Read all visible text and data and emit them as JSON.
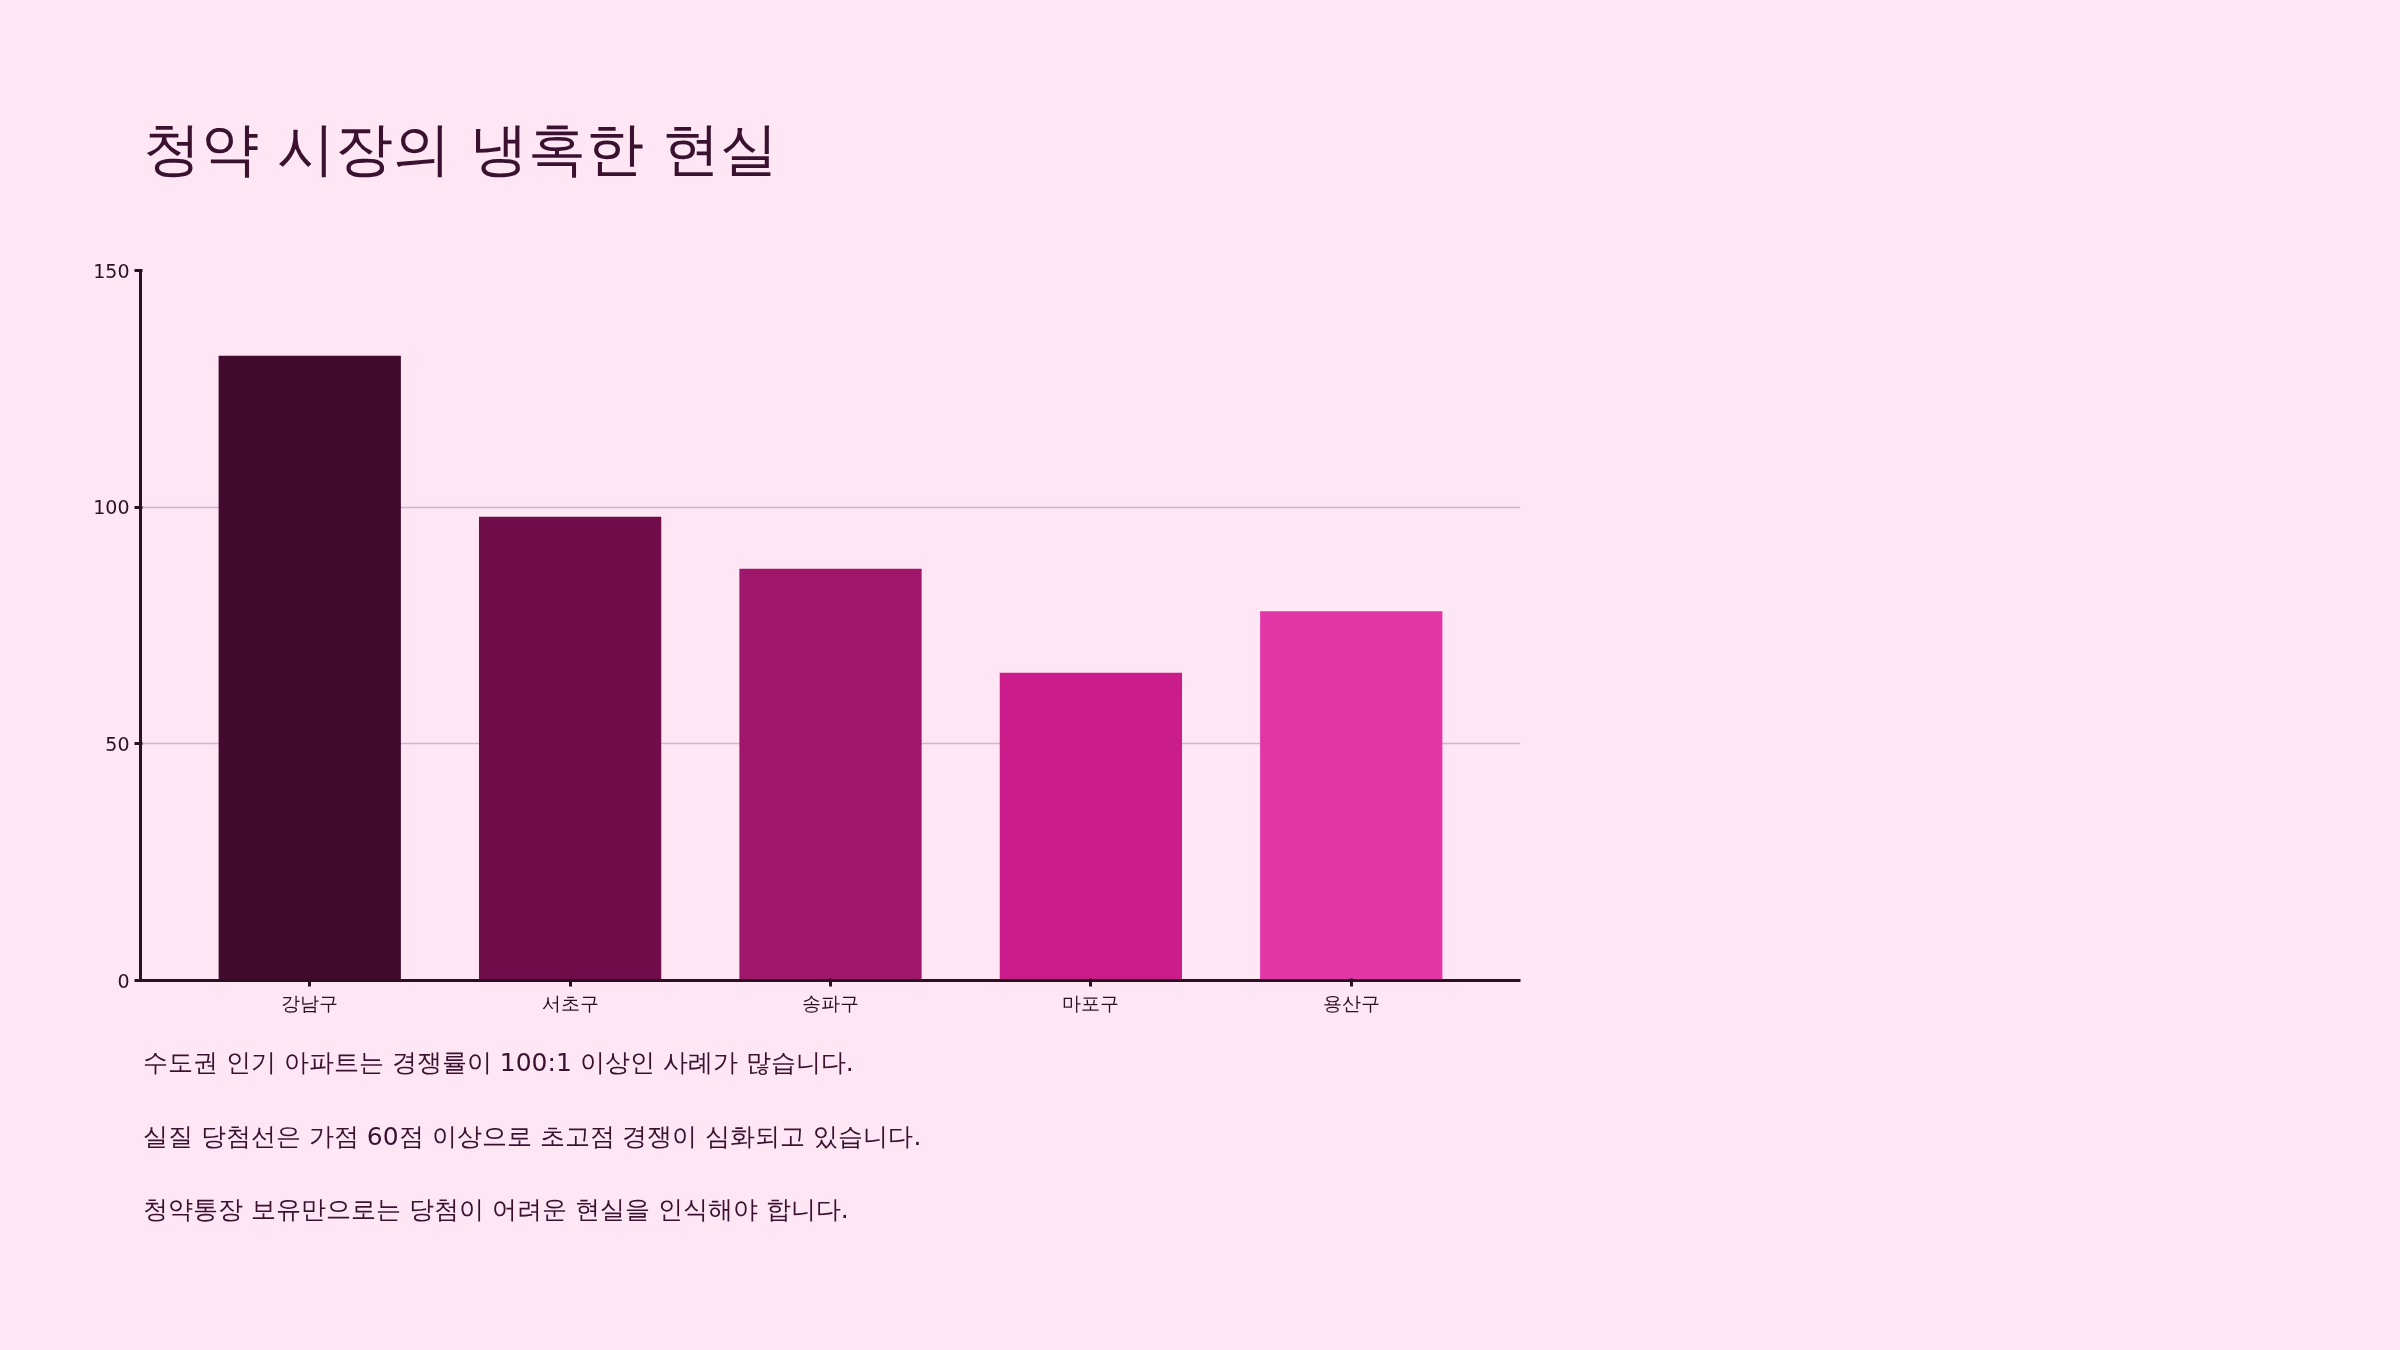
{
  "chart_data": {
    "type": "bar",
    "title": "청약 시장의 냉혹한 현실",
    "categories": [
      "강남구",
      "서초구",
      "송파구",
      "마포구",
      "용산구"
    ],
    "values": [
      132,
      98,
      87,
      65,
      78
    ],
    "colors": [
      "#420a2c",
      "#710d4b",
      "#9e176a",
      "#cb1c8b",
      "#e336a6"
    ],
    "ylim": [
      0,
      150
    ],
    "yticks": [
      0,
      50,
      100,
      150
    ],
    "grid": "y",
    "annotations": [
      "수도권 인기 아파트는 경쟁률이 100:1 이상인 사례가 많습니다.",
      "실질 당첨선은 가점 60점 이상으로 초고점 경쟁이 심화되고 있습니다.",
      "청약통장 보유만으로는 당첨이 어려운 현실을 인식해야 합니다."
    ]
  }
}
